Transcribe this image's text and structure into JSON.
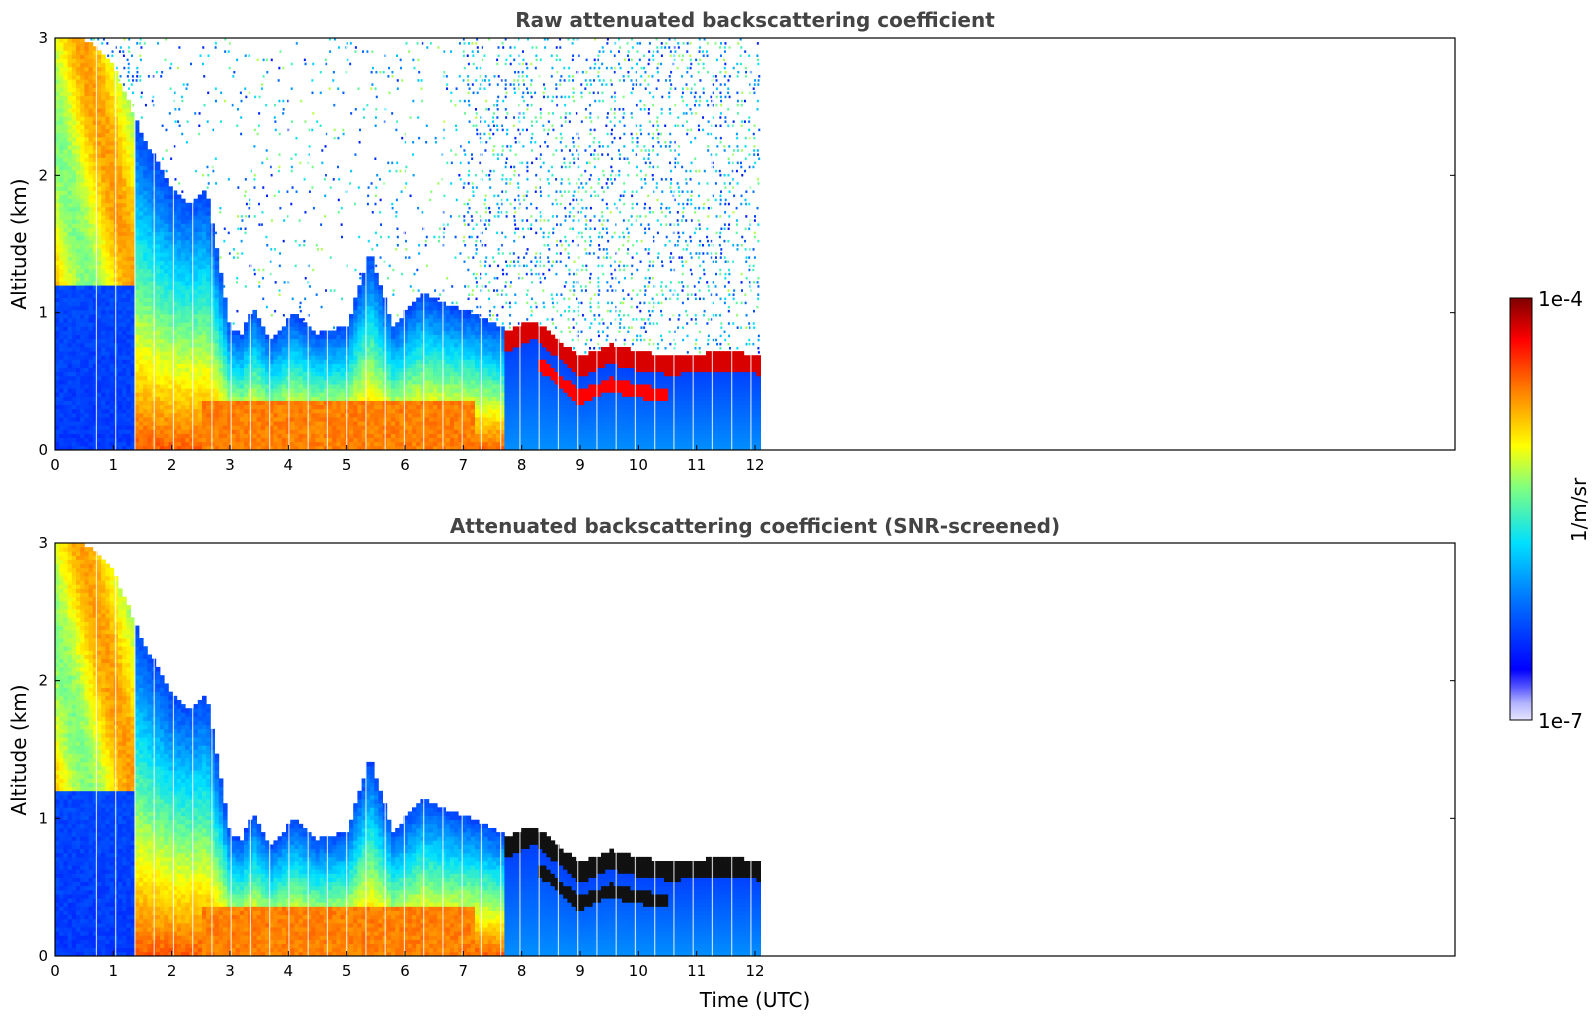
{
  "chart_data": [
    {
      "type": "heatmap",
      "title": "Raw attenuated backscattering coefficient",
      "xlabel": "",
      "ylabel": "Altitude (km)",
      "xlim": [
        0,
        24
      ],
      "ylim": [
        0,
        3
      ],
      "x_ticks": [
        "0",
        "1",
        "2",
        "3",
        "4",
        "5",
        "6",
        "7",
        "8",
        "9",
        "10",
        "11",
        "12"
      ],
      "y_ticks": [
        "0",
        "1",
        "2",
        "3"
      ],
      "data_extent_hours": 12.1,
      "boundary_layer_top_km": [
        [
          0.0,
          3.0
        ],
        [
          0.5,
          3.0
        ],
        [
          1.0,
          2.8
        ],
        [
          1.5,
          2.3
        ],
        [
          2.0,
          1.9
        ],
        [
          2.3,
          1.8
        ],
        [
          2.6,
          1.9
        ],
        [
          3.0,
          0.9
        ],
        [
          3.2,
          0.85
        ],
        [
          3.4,
          1.05
        ],
        [
          3.7,
          0.8
        ],
        [
          4.1,
          1.0
        ],
        [
          4.5,
          0.85
        ],
        [
          5.0,
          0.9
        ],
        [
          5.4,
          1.45
        ],
        [
          5.8,
          0.9
        ],
        [
          6.3,
          1.15
        ],
        [
          6.8,
          1.05
        ],
        [
          7.2,
          1.0
        ],
        [
          7.6,
          0.9
        ],
        [
          8.0,
          0.95
        ],
        [
          9.0,
          0.8
        ],
        [
          10.0,
          0.75
        ],
        [
          11.0,
          0.75
        ],
        [
          12.1,
          0.7
        ]
      ],
      "cloud_layer_km": [
        [
          7.8,
          0.8
        ],
        [
          8.2,
          0.88
        ],
        [
          8.6,
          0.75
        ],
        [
          9.0,
          0.6
        ],
        [
          9.5,
          0.7
        ],
        [
          10.0,
          0.65
        ],
        [
          10.5,
          0.62
        ],
        [
          11.0,
          0.63
        ],
        [
          11.5,
          0.65
        ],
        [
          12.1,
          0.62
        ]
      ],
      "noise_region": "sparse points above boundary layer, strongest after 7 UTC"
    },
    {
      "type": "heatmap",
      "title": "Attenuated backscattering coefficient (SNR-screened)",
      "xlabel": "Time (UTC)",
      "ylabel": "Altitude (km)",
      "xlim": [
        0,
        24
      ],
      "ylim": [
        0,
        3
      ],
      "x_ticks": [
        "0",
        "1",
        "2",
        "3",
        "4",
        "5",
        "6",
        "7",
        "8",
        "9",
        "10",
        "11",
        "12"
      ],
      "y_ticks": [
        "0",
        "1",
        "2",
        "3"
      ],
      "data_extent_hours": 12.1,
      "noise_region": "screened (white) above boundary layer"
    }
  ],
  "colorbar": {
    "label": "1/m/sr",
    "min_label": "1e-7",
    "max_label": "1e-4",
    "scale": "log",
    "colormap": "jet",
    "colors": [
      "#e6e6ff",
      "#b3b3ff",
      "#0000ff",
      "#0080ff",
      "#00e0ff",
      "#7fff80",
      "#ffff00",
      "#ff8000",
      "#ff0000",
      "#800000"
    ]
  }
}
